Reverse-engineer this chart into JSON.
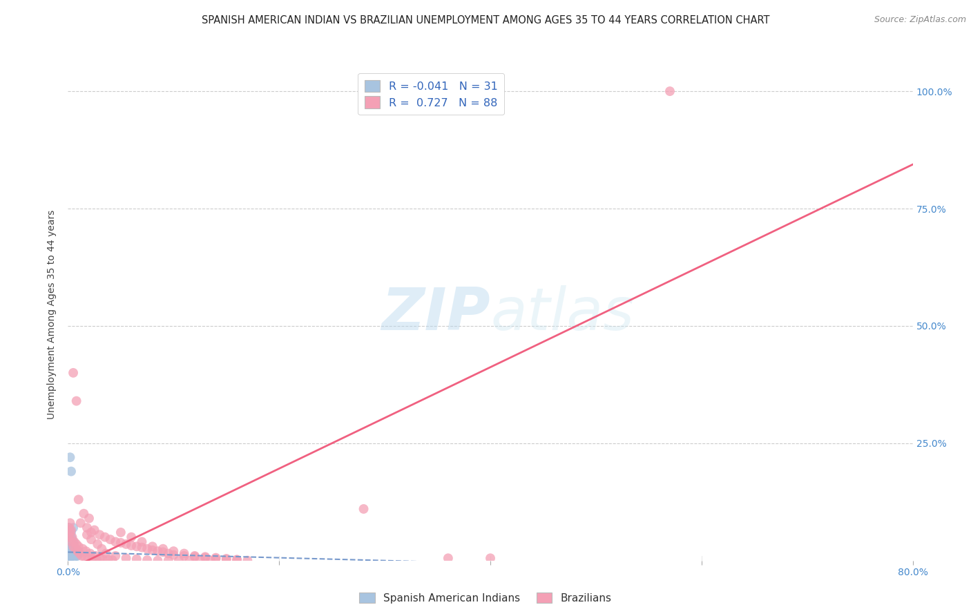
{
  "title": "SPANISH AMERICAN INDIAN VS BRAZILIAN UNEMPLOYMENT AMONG AGES 35 TO 44 YEARS CORRELATION CHART",
  "source": "Source: ZipAtlas.com",
  "ylabel": "Unemployment Among Ages 35 to 44 years",
  "xlim": [
    0.0,
    0.8
  ],
  "ylim": [
    0.0,
    1.05
  ],
  "x_ticks": [
    0.0,
    0.2,
    0.4,
    0.6,
    0.8
  ],
  "x_tick_labels": [
    "0.0%",
    "",
    "",
    "",
    "80.0%"
  ],
  "y_ticks": [
    0.0,
    0.25,
    0.5,
    0.75,
    1.0
  ],
  "y_tick_labels": [
    "",
    "25.0%",
    "50.0%",
    "75.0%",
    "100.0%"
  ],
  "legend1_label": "Spanish American Indians",
  "legend2_label": "Brazilians",
  "R1": -0.041,
  "N1": 31,
  "R2": 0.727,
  "N2": 88,
  "blue_color": "#a8c4e0",
  "pink_color": "#f4a0b5",
  "blue_line_color": "#7799cc",
  "pink_line_color": "#f06080",
  "blue_slope": -0.06,
  "blue_intercept": 0.018,
  "pink_slope": 1.08,
  "pink_intercept": -0.02,
  "blue_scatter": [
    [
      0.002,
      0.22
    ],
    [
      0.003,
      0.19
    ],
    [
      0.001,
      0.055
    ],
    [
      0.002,
      0.065
    ],
    [
      0.003,
      0.06
    ],
    [
      0.005,
      0.07
    ],
    [
      0.001,
      0.07
    ],
    [
      0.002,
      0.055
    ],
    [
      0.003,
      0.05
    ],
    [
      0.004,
      0.045
    ],
    [
      0.005,
      0.04
    ],
    [
      0.001,
      0.035
    ],
    [
      0.002,
      0.03
    ],
    [
      0.003,
      0.03
    ],
    [
      0.006,
      0.02
    ],
    [
      0.004,
      0.025
    ],
    [
      0.007,
      0.02
    ],
    [
      0.005,
      0.015
    ],
    [
      0.008,
      0.01
    ],
    [
      0.01,
      0.02
    ],
    [
      0.006,
      0.03
    ],
    [
      0.009,
      0.01
    ],
    [
      0.0,
      0.01
    ],
    [
      0.001,
      0.01
    ],
    [
      0.002,
      0.02
    ],
    [
      0.003,
      0.015
    ],
    [
      0.004,
      0.01
    ],
    [
      0.005,
      0.005
    ],
    [
      0.0,
      0.005
    ],
    [
      0.001,
      0.005
    ],
    [
      0.002,
      0.005
    ]
  ],
  "pink_scatter": [
    [
      0.005,
      0.4
    ],
    [
      0.008,
      0.34
    ],
    [
      0.57,
      1.0
    ],
    [
      0.01,
      0.13
    ],
    [
      0.015,
      0.1
    ],
    [
      0.02,
      0.09
    ],
    [
      0.012,
      0.08
    ],
    [
      0.018,
      0.07
    ],
    [
      0.025,
      0.065
    ],
    [
      0.022,
      0.06
    ],
    [
      0.03,
      0.055
    ],
    [
      0.035,
      0.05
    ],
    [
      0.04,
      0.045
    ],
    [
      0.045,
      0.04
    ],
    [
      0.05,
      0.038
    ],
    [
      0.055,
      0.035
    ],
    [
      0.06,
      0.032
    ],
    [
      0.065,
      0.03
    ],
    [
      0.07,
      0.028
    ],
    [
      0.075,
      0.025
    ],
    [
      0.08,
      0.022
    ],
    [
      0.085,
      0.02
    ],
    [
      0.09,
      0.018
    ],
    [
      0.095,
      0.015
    ],
    [
      0.1,
      0.012
    ],
    [
      0.11,
      0.01
    ],
    [
      0.12,
      0.008
    ],
    [
      0.13,
      0.006
    ],
    [
      0.14,
      0.004
    ],
    [
      0.15,
      0.002
    ],
    [
      0.16,
      0.001
    ],
    [
      0.17,
      0.0
    ],
    [
      0.001,
      0.05
    ],
    [
      0.003,
      0.04
    ],
    [
      0.005,
      0.03
    ],
    [
      0.007,
      0.025
    ],
    [
      0.009,
      0.02
    ],
    [
      0.011,
      0.015
    ],
    [
      0.013,
      0.01
    ],
    [
      0.016,
      0.008
    ],
    [
      0.019,
      0.006
    ],
    [
      0.023,
      0.004
    ],
    [
      0.027,
      0.002
    ],
    [
      0.002,
      0.06
    ],
    [
      0.004,
      0.05
    ],
    [
      0.006,
      0.04
    ],
    [
      0.008,
      0.035
    ],
    [
      0.01,
      0.03
    ],
    [
      0.014,
      0.025
    ],
    [
      0.017,
      0.02
    ],
    [
      0.021,
      0.015
    ],
    [
      0.026,
      0.01
    ],
    [
      0.03,
      0.005
    ],
    [
      0.033,
      0.003
    ],
    [
      0.038,
      0.002
    ],
    [
      0.042,
      0.001
    ],
    [
      0.28,
      0.11
    ],
    [
      0.36,
      0.005
    ],
    [
      0.4,
      0.005
    ],
    [
      0.05,
      0.06
    ],
    [
      0.06,
      0.05
    ],
    [
      0.07,
      0.04
    ],
    [
      0.08,
      0.03
    ],
    [
      0.09,
      0.025
    ],
    [
      0.1,
      0.02
    ],
    [
      0.11,
      0.015
    ],
    [
      0.12,
      0.01
    ],
    [
      0.13,
      0.008
    ],
    [
      0.14,
      0.006
    ],
    [
      0.15,
      0.004
    ],
    [
      0.16,
      0.002
    ],
    [
      0.001,
      0.07
    ],
    [
      0.002,
      0.08
    ],
    [
      0.003,
      0.065
    ],
    [
      0.018,
      0.055
    ],
    [
      0.022,
      0.045
    ],
    [
      0.028,
      0.035
    ],
    [
      0.032,
      0.025
    ],
    [
      0.036,
      0.015
    ],
    [
      0.045,
      0.01
    ],
    [
      0.055,
      0.005
    ],
    [
      0.065,
      0.003
    ],
    [
      0.075,
      0.001
    ],
    [
      0.085,
      0.0
    ],
    [
      0.095,
      0.0
    ],
    [
      0.105,
      0.0
    ],
    [
      0.115,
      0.0
    ],
    [
      0.125,
      0.0
    ],
    [
      0.135,
      0.0
    ]
  ]
}
